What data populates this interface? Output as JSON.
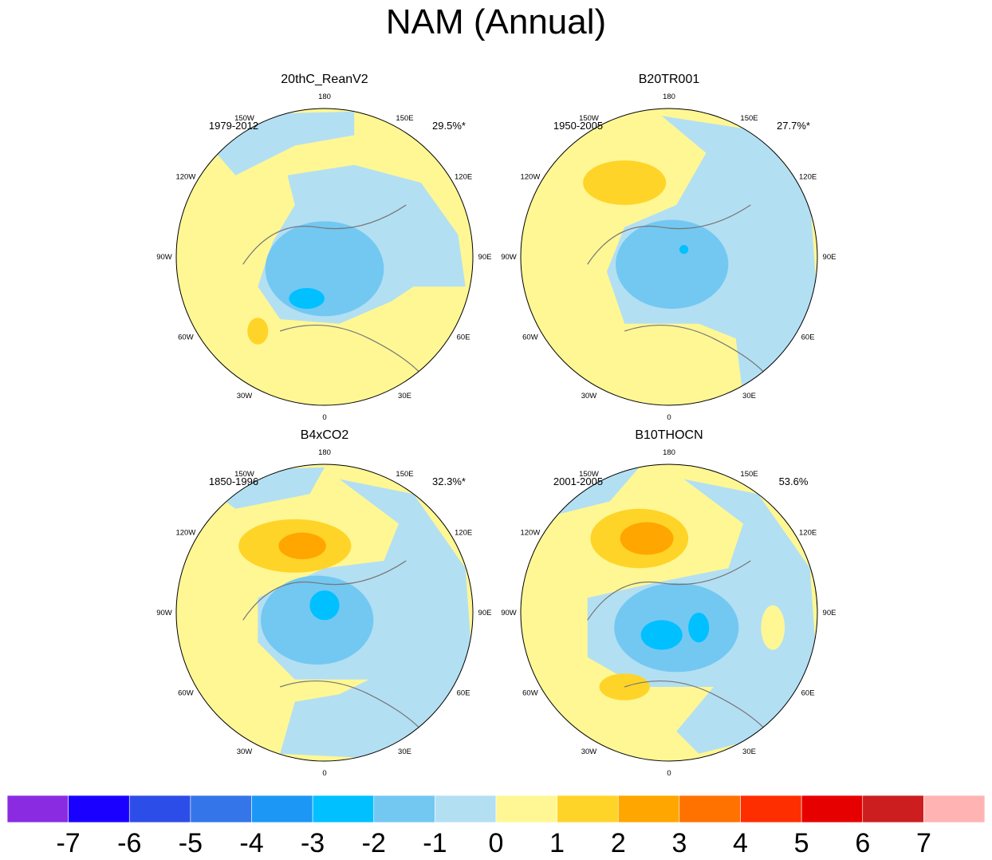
{
  "title": "NAM (Annual)",
  "colors": {
    "-7": "#8a2be2",
    "-6": "#1a00ff",
    "-5": "#2d4de8",
    "-4": "#3476ea",
    "-3": "#1c97f5",
    "-2": "#00c0ff",
    "-1": "#73c8f2",
    "0": "#b3dff3",
    "1": "#fff794",
    "2": "#ffd428",
    "3": "#ffa600",
    "4": "#ff7200",
    "5": "#ff2e00",
    "6": "#e60000",
    "7": "#cc1e1e",
    "8": "#ffb3b3"
  },
  "chart_data": {
    "type": "heatmap",
    "map_projection": "north-polar-stereographic",
    "longitude_labels": [
      "180",
      "150E",
      "120E",
      "90E",
      "60E",
      "30E",
      "0",
      "30W",
      "60W",
      "90W",
      "120W",
      "150W"
    ],
    "panels": [
      {
        "title": "20thC_ReanV2",
        "period": "1979-2012",
        "variance": "29.5%*",
        "min_value": -3,
        "max_value": 1
      },
      {
        "title": "B20TR001",
        "period": "1950-2005",
        "variance": "27.7%*",
        "min_value": -3,
        "max_value": 2
      },
      {
        "title": "B4xCO2",
        "period": "1850-1996",
        "variance": "32.3%*",
        "min_value": -3,
        "max_value": 3
      },
      {
        "title": "B10THOCN",
        "period": "2001-2005",
        "variance": "53.6%",
        "min_value": -3,
        "max_value": 3
      }
    ],
    "colorbar": {
      "tick_labels": [
        "-7",
        "-6",
        "-5",
        "-4",
        "-3",
        "-2",
        "-1",
        "0",
        "1",
        "2",
        "3",
        "4",
        "5",
        "6",
        "7"
      ],
      "levels": [
        -7,
        -6,
        -5,
        -4,
        -3,
        -2,
        -1,
        0,
        1,
        2,
        3,
        4,
        5,
        6,
        7
      ]
    }
  }
}
